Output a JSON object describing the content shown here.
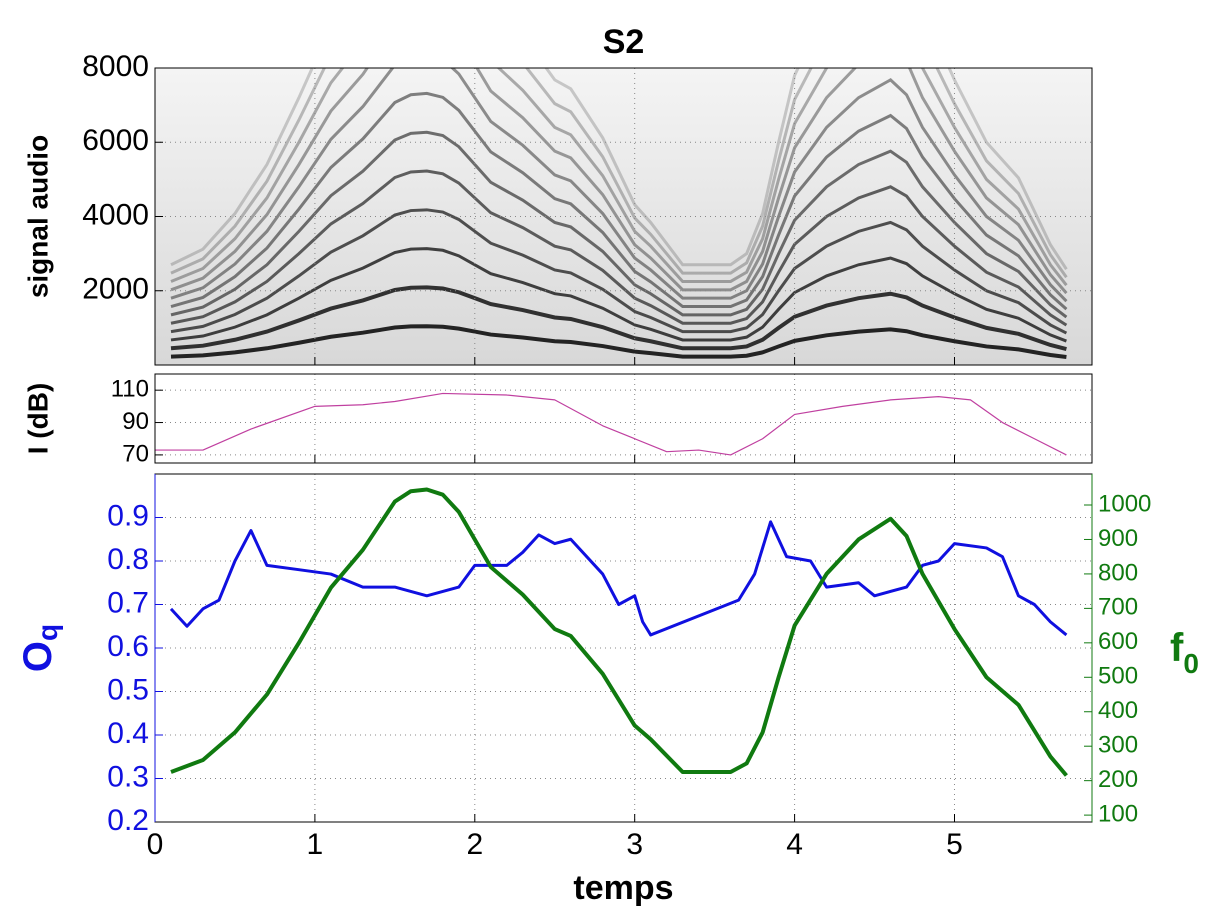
{
  "chart_data": [
    {
      "type": "spectrogram",
      "title": "S2",
      "ylabel": "signal audio",
      "xlim": [
        0,
        5.86
      ],
      "xticks": [
        0,
        1,
        2,
        3,
        4,
        5
      ],
      "ylim": [
        0,
        8000
      ],
      "yticks": [
        2000,
        4000,
        6000,
        8000
      ],
      "grid": true
    },
    {
      "type": "line",
      "ylabel": "I (dB)",
      "xlim": [
        0,
        5.86
      ],
      "xticks": [
        0,
        1,
        2,
        3,
        4,
        5
      ],
      "ylim": [
        65,
        120
      ],
      "yticks": [
        70,
        90,
        110
      ],
      "grid": true,
      "series": [
        {
          "color": "#c040a0",
          "x": [
            0,
            0.3,
            0.6,
            1.0,
            1.3,
            1.5,
            1.8,
            2.2,
            2.5,
            2.8,
            3.0,
            3.2,
            3.4,
            3.6,
            3.8,
            4.0,
            4.3,
            4.6,
            4.9,
            5.1,
            5.3,
            5.5,
            5.7
          ],
          "values": [
            73,
            73,
            86,
            100,
            101,
            103,
            108,
            107,
            104,
            88,
            80,
            72,
            73,
            70,
            80,
            95,
            100,
            104,
            106,
            104,
            90,
            80,
            70
          ]
        }
      ]
    },
    {
      "type": "dual-line",
      "xlabel": "temps",
      "ylabel": "O",
      "ylabel_sub": "q",
      "y2label": "f",
      "y2label_sub": "0",
      "xlim": [
        0,
        5.86
      ],
      "xticks": [
        0,
        1,
        2,
        3,
        4,
        5
      ],
      "ylim": [
        0.2,
        1.0
      ],
      "yticks": [
        0.2,
        0.3,
        0.4,
        0.5,
        0.6,
        0.7,
        0.8,
        0.9
      ],
      "y2lim": [
        80,
        1090
      ],
      "y2ticks": [
        100,
        200,
        300,
        400,
        500,
        600,
        700,
        800,
        900,
        1000
      ],
      "grid": true,
      "series": [
        {
          "color": "#1010e0",
          "x": [
            0.1,
            0.2,
            0.3,
            0.4,
            0.5,
            0.6,
            0.7,
            0.9,
            1.1,
            1.3,
            1.5,
            1.7,
            1.9,
            2.0,
            2.2,
            2.3,
            2.4,
            2.5,
            2.6,
            2.8,
            2.9,
            3.0,
            3.05,
            3.1,
            3.65,
            3.75,
            3.85,
            3.95,
            4.1,
            4.2,
            4.4,
            4.5,
            4.7,
            4.8,
            4.9,
            5.0,
            5.2,
            5.3,
            5.4,
            5.5,
            5.6,
            5.7
          ],
          "values": [
            0.69,
            0.65,
            0.69,
            0.71,
            0.8,
            0.87,
            0.79,
            0.78,
            0.77,
            0.74,
            0.74,
            0.72,
            0.74,
            0.79,
            0.79,
            0.82,
            0.86,
            0.84,
            0.85,
            0.77,
            0.7,
            0.72,
            0.66,
            0.63,
            0.71,
            0.77,
            0.89,
            0.81,
            0.8,
            0.74,
            0.75,
            0.72,
            0.74,
            0.79,
            0.8,
            0.84,
            0.83,
            0.81,
            0.72,
            0.7,
            0.66,
            0.63
          ]
        },
        {
          "color": "#107a10",
          "axis": "y2",
          "x": [
            0.1,
            0.3,
            0.5,
            0.7,
            0.9,
            1.1,
            1.3,
            1.5,
            1.6,
            1.7,
            1.8,
            1.9,
            2.0,
            2.1,
            2.3,
            2.5,
            2.6,
            2.8,
            3.0,
            3.1,
            3.3,
            3.6,
            3.7,
            3.8,
            3.9,
            4.0,
            4.2,
            4.4,
            4.6,
            4.7,
            4.8,
            5.0,
            5.2,
            5.4,
            5.6,
            5.7
          ],
          "values": [
            225,
            260,
            340,
            450,
            600,
            760,
            870,
            1010,
            1040,
            1045,
            1030,
            980,
            900,
            820,
            740,
            640,
            620,
            510,
            360,
            320,
            225,
            225,
            250,
            340,
            500,
            650,
            800,
            900,
            960,
            910,
            800,
            640,
            500,
            420,
            270,
            215
          ]
        }
      ]
    }
  ]
}
